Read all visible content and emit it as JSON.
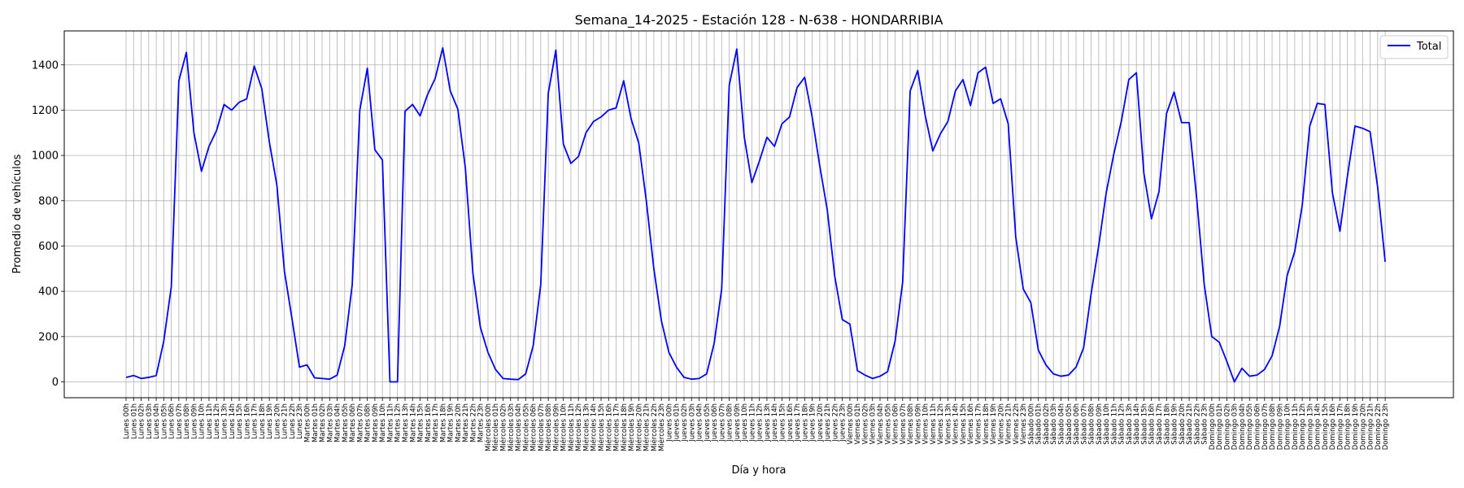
{
  "chart_data": {
    "type": "line",
    "title": "Semana_14-2025 - Estación 128 - N-638  - HONDARRIBIA",
    "xlabel": "Día y hora",
    "ylabel": "Promedio de vehículos",
    "ylim": [
      -70,
      1550
    ],
    "yticks": [
      0,
      200,
      400,
      600,
      800,
      1000,
      1200,
      1400
    ],
    "grid": true,
    "legend_position": "upper-right",
    "days": [
      "Lunes",
      "Martes",
      "Miércoles",
      "Jueves",
      "Viernes",
      "Sábado",
      "Domingo"
    ],
    "hours": [
      "00h",
      "01h",
      "02h",
      "03h",
      "04h",
      "05h",
      "06h",
      "07h",
      "08h",
      "09h",
      "10h",
      "11h",
      "12h",
      "13h",
      "14h",
      "15h",
      "16h",
      "17h",
      "18h",
      "19h",
      "20h",
      "21h",
      "22h",
      "23h"
    ],
    "series": [
      {
        "name": "Total",
        "color": "#0000ff",
        "values": [
          20,
          28,
          15,
          20,
          28,
          180,
          420,
          1330,
          1455,
          1100,
          930,
          1040,
          1110,
          1225,
          1200,
          1235,
          1250,
          1395,
          1295,
          1060,
          870,
          490,
          280,
          65,
          75,
          18,
          15,
          12,
          30,
          160,
          430,
          1200,
          1385,
          1025,
          980,
          0,
          0,
          1195,
          1225,
          1175,
          1270,
          1340,
          1475,
          1285,
          1205,
          945,
          480,
          240,
          130,
          55,
          15,
          12,
          10,
          35,
          160,
          430,
          1275,
          1465,
          1050,
          965,
          995,
          1100,
          1150,
          1170,
          1200,
          1210,
          1330,
          1160,
          1055,
          800,
          500,
          270,
          130,
          65,
          20,
          12,
          15,
          35,
          170,
          410,
          1310,
          1470,
          1080,
          880,
          975,
          1080,
          1040,
          1140,
          1170,
          1300,
          1345,
          1170,
          955,
          760,
          465,
          275,
          255,
          50,
          30,
          15,
          25,
          45,
          180,
          440,
          1285,
          1375,
          1175,
          1020,
          1095,
          1150,
          1285,
          1335,
          1220,
          1365,
          1390,
          1230,
          1250,
          1140,
          640,
          410,
          350,
          140,
          75,
          35,
          25,
          30,
          65,
          150,
          390,
          600,
          835,
          1005,
          1150,
          1335,
          1365,
          920,
          720,
          840,
          1185,
          1280,
          1145,
          1145,
          810,
          430,
          200,
          175,
          90,
          0,
          60,
          25,
          30,
          55,
          115,
          245,
          470,
          575,
          780,
          1130,
          1230,
          1225,
          835,
          665,
          910,
          1130,
          1120,
          1105,
          860,
          530
        ]
      }
    ]
  }
}
